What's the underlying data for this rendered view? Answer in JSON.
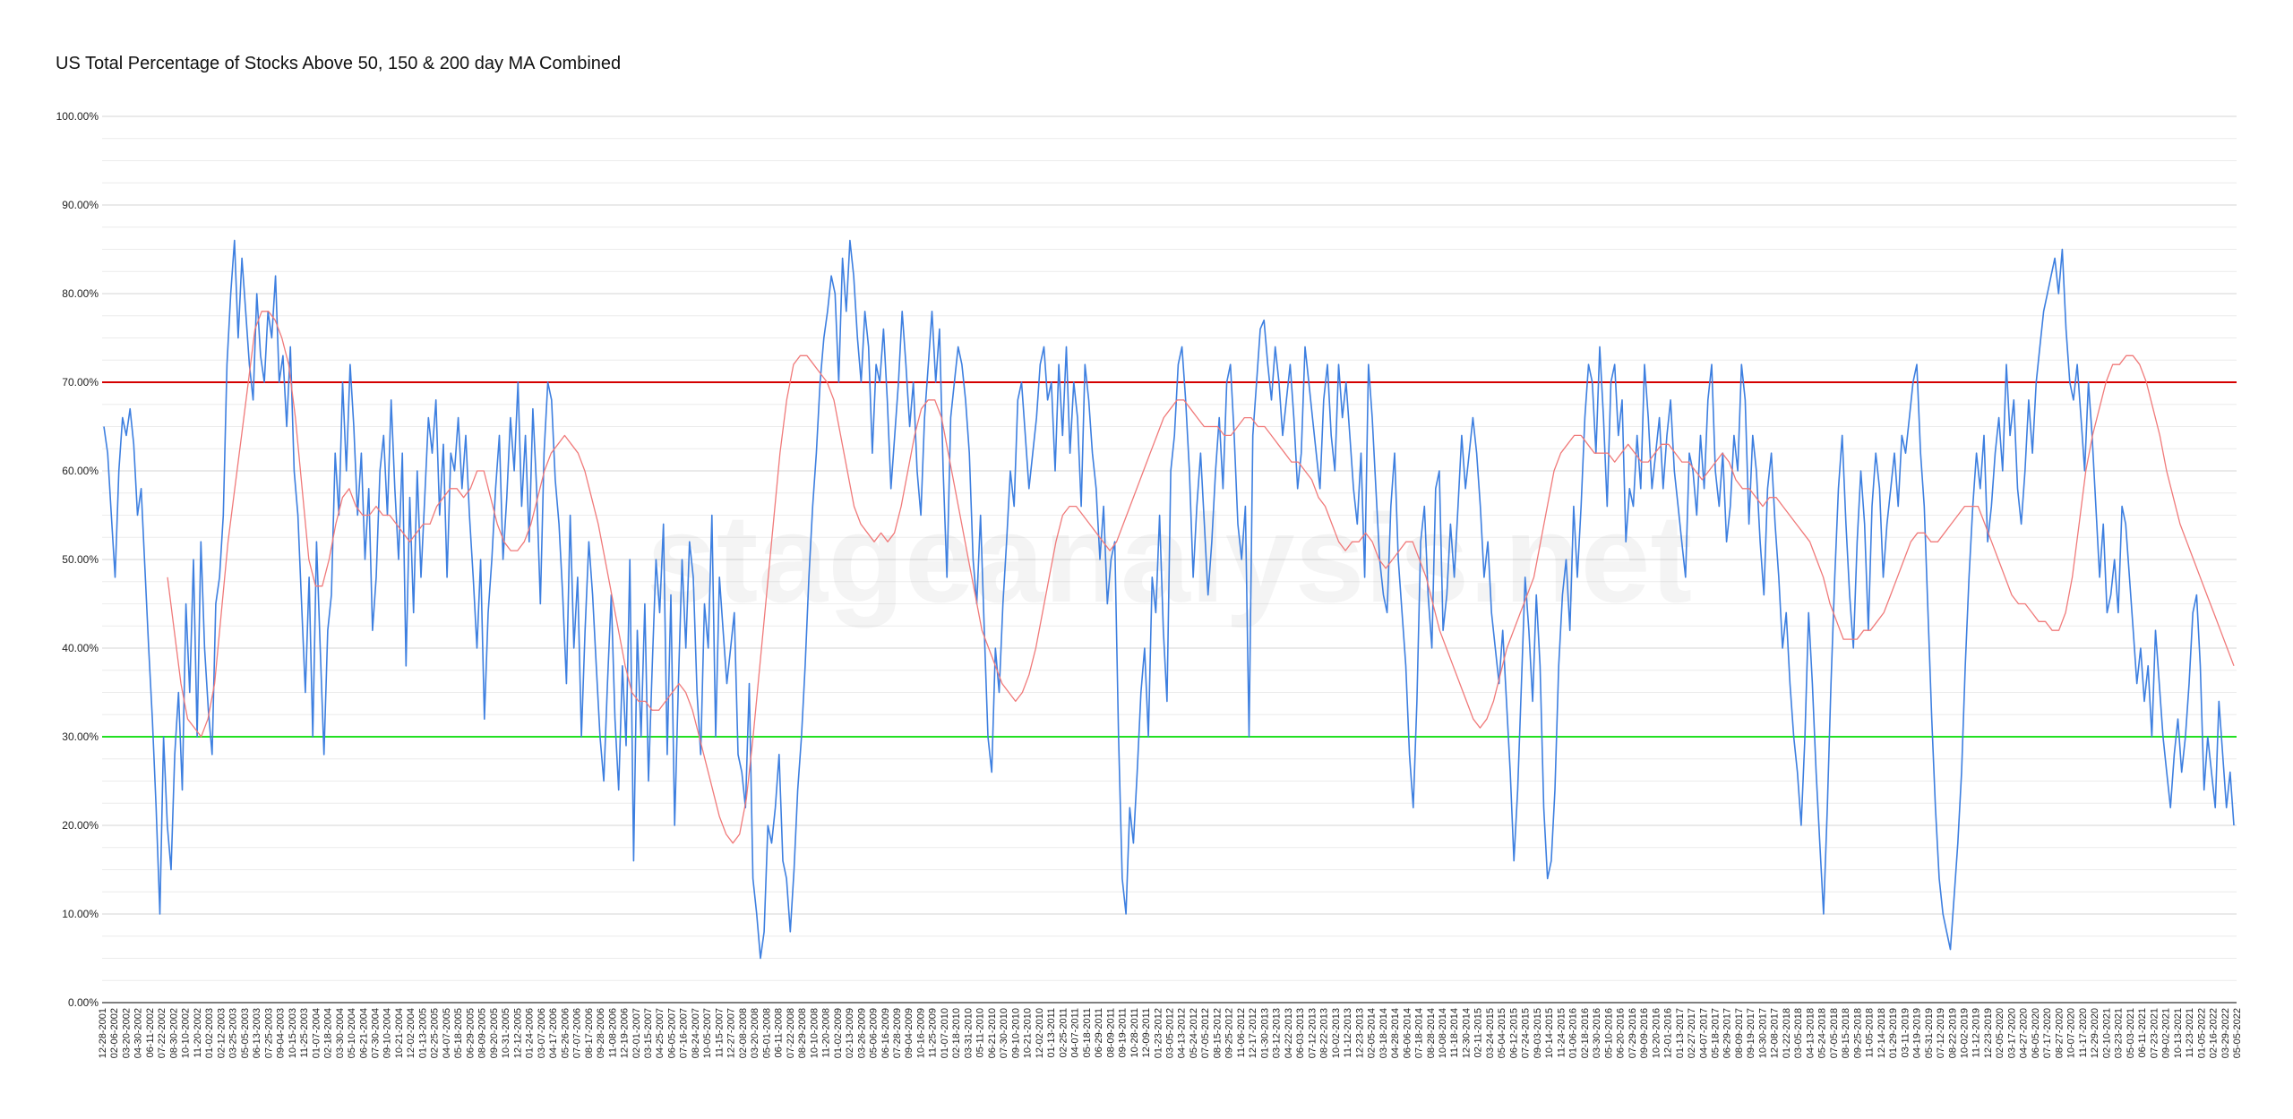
{
  "chart_data": {
    "type": "line",
    "title": "US Total Percentage of Stocks Above 50, 150 & 200 day MA Combined",
    "xlabel": "",
    "ylabel": "",
    "ylim": [
      0,
      100
    ],
    "y_tick_labels": [
      "0.00%",
      "10.00%",
      "20.00%",
      "30.00%",
      "40.00%",
      "50.00%",
      "60.00%",
      "70.00%",
      "80.00%",
      "90.00%",
      "100.00%"
    ],
    "grid": true,
    "watermark": "stageanalysis.net",
    "x_tick_labels": [
      "12-28-2001",
      "02-06-2002",
      "03-20-2002",
      "04-30-2002",
      "06-11-2002",
      "07-22-2002",
      "08-30-2002",
      "10-10-2002",
      "11-20-2002",
      "01-02-2003",
      "02-12-2003",
      "03-25-2003",
      "05-05-2003",
      "06-13-2003",
      "07-25-2003",
      "09-04-2003",
      "10-15-2003",
      "11-25-2003",
      "01-07-2004",
      "02-18-2004",
      "03-30-2004",
      "05-10-2004",
      "06-21-2004",
      "07-30-2004",
      "09-10-2004",
      "10-21-2004",
      "12-02-2004",
      "01-13-2005",
      "02-25-2005",
      "04-07-2005",
      "05-18-2005",
      "06-29-2005",
      "08-09-2005",
      "09-20-2005",
      "10-31-2005",
      "12-12-2005",
      "01-24-2006",
      "03-07-2006",
      "04-17-2006",
      "05-26-2006",
      "07-07-2006",
      "08-17-2006",
      "09-28-2006",
      "11-08-2006",
      "12-19-2006",
      "02-01-2007",
      "03-15-2007",
      "04-25-2007",
      "06-05-2007",
      "07-16-2007",
      "08-24-2007",
      "10-05-2007",
      "11-15-2007",
      "12-27-2007",
      "02-08-2008",
      "03-20-2008",
      "05-01-2008",
      "06-11-2008",
      "07-22-2008",
      "08-29-2008",
      "10-10-2008",
      "11-20-2008",
      "01-02-2009",
      "02-13-2009",
      "03-26-2009",
      "05-06-2009",
      "06-16-2009",
      "07-28-2009",
      "09-04-2009",
      "10-16-2009",
      "11-25-2009",
      "01-07-2010",
      "02-18-2010",
      "03-31-2010",
      "05-11-2010",
      "06-21-2010",
      "07-30-2010",
      "09-10-2010",
      "10-21-2010",
      "12-02-2010",
      "01-13-2011",
      "02-25-2011",
      "04-07-2011",
      "05-18-2011",
      "06-29-2011",
      "08-09-2011",
      "09-19-2011",
      "10-28-2011",
      "12-09-2011",
      "01-23-2012",
      "03-05-2012",
      "04-13-2012",
      "05-24-2012",
      "07-05-2012",
      "08-15-2012",
      "09-25-2012",
      "11-06-2012",
      "12-17-2012",
      "01-30-2013",
      "03-12-2013",
      "04-22-2013",
      "06-03-2013",
      "07-12-2013",
      "08-22-2013",
      "10-02-2013",
      "11-12-2013",
      "12-23-2013",
      "02-05-2014",
      "03-18-2014",
      "04-28-2014",
      "06-06-2014",
      "07-18-2014",
      "08-28-2014",
      "10-08-2014",
      "11-18-2014",
      "12-30-2014",
      "02-11-2015",
      "03-24-2015",
      "05-04-2015",
      "06-12-2015",
      "07-24-2015",
      "09-03-2015",
      "10-14-2015",
      "11-24-2015",
      "01-06-2016",
      "02-18-2016",
      "03-30-2016",
      "05-10-2016",
      "06-20-2016",
      "07-29-2016",
      "09-09-2016",
      "10-20-2016",
      "12-01-2016",
      "01-13-2017",
      "02-27-2017",
      "04-07-2017",
      "05-18-2017",
      "06-29-2017",
      "08-09-2017",
      "09-19-2017",
      "10-30-2017",
      "12-08-2017",
      "01-22-2018",
      "03-05-2018",
      "04-13-2018",
      "05-24-2018",
      "07-05-2018",
      "08-15-2018",
      "09-25-2018",
      "11-05-2018",
      "12-14-2018",
      "01-29-2019",
      "03-11-2019",
      "04-19-2019",
      "05-31-2019",
      "07-12-2019",
      "08-22-2019",
      "10-02-2019",
      "11-12-2019",
      "12-23-2019",
      "02-05-2020",
      "03-17-2020",
      "04-27-2020",
      "06-05-2020",
      "07-17-2020",
      "08-27-2020",
      "10-07-2020",
      "11-17-2020",
      "12-29-2020",
      "02-10-2021",
      "03-23-2021",
      "05-03-2021",
      "06-11-2021",
      "07-23-2021",
      "09-02-2021",
      "10-13-2021",
      "11-23-2021",
      "01-05-2022",
      "02-16-2022",
      "03-29-2022",
      "05-05-2022"
    ],
    "reference_lines": [
      {
        "value": 70,
        "color": "#d40000"
      },
      {
        "value": 30,
        "color": "#22e022"
      }
    ],
    "series": [
      {
        "color": "#3d7fe0",
        "values": [
          65,
          62,
          55,
          48,
          60,
          66,
          64,
          67,
          63,
          55,
          58,
          49,
          40,
          32,
          22,
          10,
          30,
          20,
          15,
          28,
          35,
          24,
          45,
          35,
          50,
          30,
          52,
          40,
          33,
          28,
          45,
          48,
          55,
          72,
          80,
          86,
          75,
          84,
          78,
          72,
          68,
          80,
          73,
          70,
          78,
          75,
          82,
          70,
          73,
          65,
          74,
          60,
          55,
          45,
          35,
          48,
          30,
          52,
          40,
          28,
          42,
          46,
          62,
          55,
          70,
          60,
          72,
          65,
          55,
          62,
          50,
          58,
          42,
          48,
          60,
          64,
          55,
          68,
          58,
          50,
          62,
          38,
          57,
          44,
          60,
          48,
          57,
          66,
          62,
          68,
          55,
          63,
          48,
          62,
          60,
          66,
          58,
          64,
          55,
          48,
          40,
          50,
          32,
          44,
          50,
          58,
          64,
          50,
          57,
          66,
          60,
          70,
          56,
          64,
          52,
          67,
          58,
          45,
          62,
          70,
          68,
          59,
          54,
          46,
          36,
          55,
          40,
          48,
          30,
          42,
          52,
          46,
          38,
          30,
          25,
          36,
          46,
          32,
          24,
          38,
          29,
          50,
          16,
          42,
          30,
          45,
          25,
          38,
          50,
          44,
          54,
          28,
          46,
          20,
          36,
          50,
          40,
          52,
          48,
          35,
          28,
          45,
          40,
          55,
          30,
          48,
          42,
          36,
          40,
          44,
          28,
          26,
          22,
          36,
          14,
          10,
          5,
          8,
          20,
          18,
          22,
          28,
          16,
          14,
          8,
          15,
          24,
          30,
          38,
          48,
          56,
          62,
          70,
          75,
          78,
          82,
          80,
          70,
          84,
          78,
          86,
          82,
          75,
          70,
          78,
          74,
          62,
          72,
          70,
          76,
          68,
          58,
          64,
          70,
          78,
          72,
          65,
          70,
          60,
          55,
          66,
          72,
          78,
          70,
          76,
          60,
          48,
          66,
          70,
          74,
          72,
          68,
          62,
          50,
          45,
          55,
          42,
          30,
          26,
          40,
          35,
          45,
          52,
          60,
          56,
          68,
          70,
          64,
          58,
          62,
          66,
          72,
          74,
          68,
          70,
          60,
          72,
          64,
          74,
          62,
          70,
          66,
          56,
          72,
          68,
          62,
          58,
          50,
          56,
          45,
          50,
          52,
          30,
          14,
          10,
          22,
          18,
          26,
          35,
          40,
          30,
          48,
          44,
          55,
          42,
          34,
          60,
          64,
          72,
          74,
          68,
          60,
          48,
          56,
          62,
          54,
          46,
          52,
          60,
          66,
          58,
          70,
          72,
          64,
          54,
          50,
          56,
          30,
          64,
          70,
          76,
          77,
          72,
          68,
          74,
          70,
          64,
          68,
          72,
          66,
          58,
          62,
          74,
          70,
          66,
          62,
          58,
          68,
          72,
          64,
          60,
          72,
          66,
          70,
          64,
          58,
          54,
          62,
          48,
          72,
          66,
          58,
          50,
          46,
          44,
          56,
          62,
          50,
          44,
          38,
          28,
          22,
          34,
          52,
          56,
          46,
          40,
          58,
          60,
          42,
          46,
          54,
          48,
          56,
          64,
          58,
          62,
          66,
          62,
          56,
          48,
          52,
          44,
          40,
          36,
          42,
          34,
          26,
          16,
          24,
          36,
          48,
          42,
          34,
          46,
          38,
          22,
          14,
          16,
          24,
          38,
          46,
          50,
          42,
          56,
          48,
          56,
          66,
          72,
          70,
          62,
          74,
          66,
          56,
          70,
          72,
          64,
          68,
          52,
          58,
          56,
          64,
          58,
          72,
          66,
          58,
          62,
          66,
          58,
          64,
          68,
          60,
          56,
          52,
          48,
          62,
          60,
          55,
          64,
          58,
          68,
          72,
          60,
          56,
          62,
          52,
          56,
          64,
          60,
          72,
          68,
          54,
          64,
          60,
          52,
          46,
          58,
          62,
          54,
          48,
          40,
          44,
          36,
          30,
          26,
          20,
          30,
          44,
          36,
          26,
          18,
          10,
          22,
          36,
          48,
          58,
          64,
          54,
          46,
          40,
          52,
          60,
          54,
          42,
          56,
          62,
          58,
          48,
          54,
          58,
          62,
          56,
          64,
          62,
          66,
          70,
          72,
          62,
          56,
          44,
          32,
          22,
          14,
          10,
          8,
          6,
          12,
          18,
          26,
          38,
          48,
          56,
          62,
          58,
          64,
          52,
          56,
          62,
          66,
          60,
          72,
          64,
          68,
          58,
          54,
          60,
          68,
          62,
          70,
          74,
          78,
          80,
          82,
          84,
          80,
          85,
          76,
          70,
          68,
          72,
          66,
          60,
          70,
          64,
          56,
          48,
          54,
          44,
          46,
          50,
          44,
          56,
          54,
          48,
          42,
          36,
          40,
          34,
          38,
          30,
          42,
          36,
          30,
          26,
          22,
          28,
          32,
          26,
          30,
          36,
          44,
          46,
          38,
          24,
          30,
          26,
          22,
          34,
          28,
          22,
          26,
          20
        ]
      },
      {
        "color": "#f07a7a",
        "values": [
          48,
          42,
          36,
          32,
          31,
          30,
          32,
          36,
          44,
          52,
          58,
          64,
          70,
          76,
          78,
          78,
          77,
          75,
          72,
          66,
          58,
          50,
          47,
          47,
          50,
          54,
          57,
          58,
          56,
          55,
          55,
          56,
          55,
          55,
          54,
          53,
          52,
          53,
          54,
          54,
          56,
          57,
          58,
          58,
          57,
          58,
          60,
          60,
          57,
          54,
          52,
          51,
          51,
          52,
          54,
          57,
          60,
          62,
          63,
          64,
          63,
          62,
          60,
          57,
          54,
          50,
          46,
          42,
          38,
          35,
          34,
          34,
          33,
          33,
          34,
          35,
          36,
          35,
          33,
          30,
          27,
          24,
          21,
          19,
          18,
          19,
          23,
          30,
          38,
          46,
          54,
          62,
          68,
          72,
          73,
          73,
          72,
          71,
          70,
          68,
          64,
          60,
          56,
          54,
          53,
          52,
          53,
          52,
          53,
          56,
          60,
          64,
          67,
          68,
          68,
          66,
          62,
          58,
          54,
          50,
          46,
          42,
          40,
          38,
          36,
          35,
          34,
          35,
          37,
          40,
          44,
          48,
          52,
          55,
          56,
          56,
          55,
          54,
          53,
          52,
          51,
          52,
          54,
          56,
          58,
          60,
          62,
          64,
          66,
          67,
          68,
          68,
          67,
          66,
          65,
          65,
          65,
          64,
          64,
          65,
          66,
          66,
          65,
          65,
          64,
          63,
          62,
          61,
          61,
          60,
          59,
          57,
          56,
          54,
          52,
          51,
          52,
          52,
          53,
          52,
          50,
          49,
          50,
          51,
          52,
          52,
          50,
          48,
          45,
          42,
          40,
          38,
          36,
          34,
          32,
          31,
          32,
          34,
          37,
          40,
          42,
          44,
          46,
          48,
          52,
          56,
          60,
          62,
          63,
          64,
          64,
          63,
          62,
          62,
          62,
          61,
          62,
          63,
          62,
          61,
          61,
          62,
          63,
          63,
          62,
          61,
          61,
          60,
          59,
          60,
          61,
          62,
          61,
          59,
          58,
          58,
          57,
          56,
          57,
          57,
          56,
          55,
          54,
          53,
          52,
          50,
          48,
          45,
          43,
          41,
          41,
          41,
          42,
          42,
          43,
          44,
          46,
          48,
          50,
          52,
          53,
          53,
          52,
          52,
          53,
          54,
          55,
          56,
          56,
          56,
          54,
          52,
          50,
          48,
          46,
          45,
          45,
          44,
          43,
          43,
          42,
          42,
          44,
          48,
          54,
          60,
          64,
          67,
          70,
          72,
          72,
          73,
          73,
          72,
          70,
          67,
          64,
          60,
          57,
          54,
          52,
          50,
          48,
          46,
          44,
          42,
          40,
          38
        ]
      }
    ]
  }
}
